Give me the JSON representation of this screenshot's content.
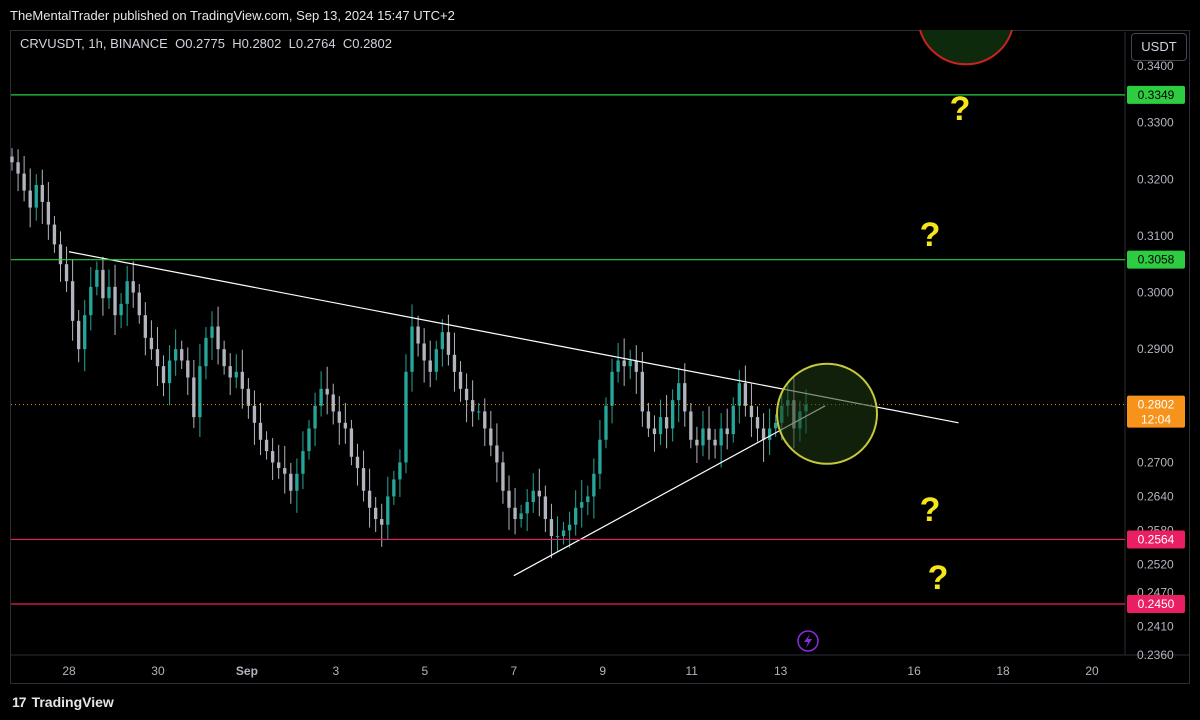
{
  "header": {
    "publisher": "TheMentalTrader published on TradingView.com, Sep 13, 2024 15:47 UTC+2"
  },
  "ohlc": {
    "symbol": "CRVUSDT, 1h, BINANCE",
    "o_label": "O",
    "o": "0.2775",
    "h_label": "H",
    "h": "0.2802",
    "l_label": "L",
    "l": "0.2764",
    "c_label": "C",
    "c": "0.2802"
  },
  "currency": "USDT",
  "footer": {
    "brand": "TradingView",
    "brand_mark": "17"
  },
  "colors": {
    "up": "#26a69a",
    "bg": "#000000",
    "green_line": "#2ecc40",
    "red_line": "#e91e63",
    "trend": "#ffffff",
    "question": "#f5e51b",
    "circle_fill": "#1e3a12",
    "circle_stroke": "#c8c83a",
    "price_badge": "#f7931a",
    "flash": "#8a2be2"
  },
  "chart_data": {
    "type": "candlestick",
    "symbol": "CRVUSDT",
    "interval": "1h",
    "exchange": "BINANCE",
    "ylim": [
      0.236,
      0.346
    ],
    "y_ticks": [
      "0.3400",
      "0.3300",
      "0.3200",
      "0.3100",
      "0.3000",
      "0.2900",
      "0.2700",
      "0.2640",
      "0.2580",
      "0.2520",
      "0.2470",
      "0.2410",
      "0.2360"
    ],
    "x_ticks": [
      "28",
      "30",
      "Sep",
      "3",
      "5",
      "7",
      "9",
      "11",
      "13",
      "16",
      "18",
      "20"
    ],
    "horizontal_levels": [
      {
        "value": "0.3349",
        "color": "green"
      },
      {
        "value": "0.3058",
        "color": "green"
      },
      {
        "value": "0.2564",
        "color": "red"
      },
      {
        "value": "0.2450",
        "color": "red"
      }
    ],
    "current_price": {
      "value": "0.2802",
      "countdown": "12:04"
    },
    "trendlines": [
      {
        "from": {
          "day": "Aug 28",
          "price": 0.3072
        },
        "to": {
          "day": "Sep 17",
          "price": 0.277
        }
      },
      {
        "from": {
          "day": "Sep 7",
          "price": 0.25
        },
        "to": {
          "day": "Sep 14",
          "price": 0.28
        }
      }
    ],
    "annotations": [
      "?",
      "?",
      "?",
      "?"
    ],
    "close_path": [
      0.323,
      0.321,
      0.318,
      0.315,
      0.319,
      0.316,
      0.312,
      0.3085,
      0.305,
      0.302,
      0.295,
      0.29,
      0.296,
      0.301,
      0.304,
      0.299,
      0.301,
      0.296,
      0.298,
      0.302,
      0.3,
      0.296,
      0.292,
      0.29,
      0.287,
      0.284,
      0.288,
      0.29,
      0.288,
      0.285,
      0.278,
      0.287,
      0.292,
      0.294,
      0.29,
      0.287,
      0.285,
      0.286,
      0.283,
      0.28,
      0.277,
      0.274,
      0.272,
      0.27,
      0.269,
      0.268,
      0.265,
      0.268,
      0.272,
      0.276,
      0.28,
      0.283,
      0.282,
      0.279,
      0.277,
      0.276,
      0.271,
      0.269,
      0.265,
      0.262,
      0.26,
      0.259,
      0.264,
      0.267,
      0.27,
      0.286,
      0.294,
      0.291,
      0.288,
      0.286,
      0.29,
      0.293,
      0.289,
      0.286,
      0.283,
      0.281,
      0.279,
      0.279,
      0.276,
      0.273,
      0.27,
      0.265,
      0.262,
      0.26,
      0.261,
      0.263,
      0.265,
      0.264,
      0.26,
      0.257,
      0.257,
      0.258,
      0.259,
      0.262,
      0.263,
      0.264,
      0.268,
      0.274,
      0.28,
      0.286,
      0.288,
      0.287,
      0.288,
      0.286,
      0.279,
      0.276,
      0.275,
      0.278,
      0.276,
      0.281,
      0.284,
      0.279,
      0.274,
      0.273,
      0.276,
      0.274,
      0.273,
      0.276,
      0.275,
      0.28,
      0.284,
      0.28,
      0.278,
      0.276,
      0.274,
      0.276,
      0.277,
      0.28,
      0.281,
      0.276,
      0.279,
      0.2802
    ],
    "markers": [
      {
        "day": "Sep 13",
        "value": 0.28,
        "shape": "circle"
      }
    ]
  }
}
